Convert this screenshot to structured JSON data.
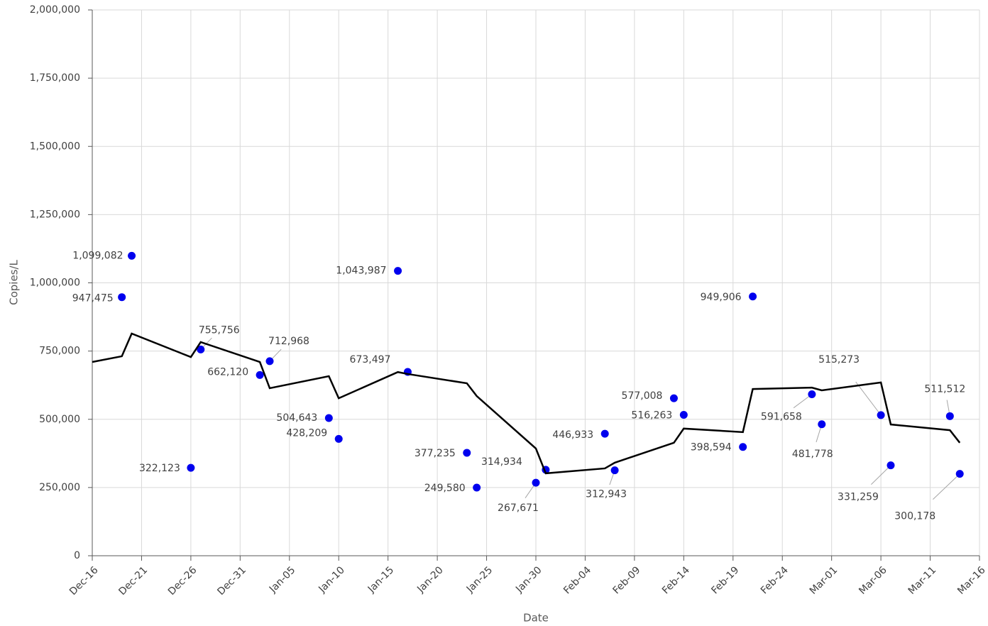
{
  "chart_data": {
    "type": "scatter",
    "x_label": "Date",
    "y_label": "Copies/L",
    "xlim": [
      0,
      90
    ],
    "xticks": [
      {
        "value": 0,
        "label": "Dec-16"
      },
      {
        "value": 5,
        "label": "Dec-21"
      },
      {
        "value": 10,
        "label": "Dec-26"
      },
      {
        "value": 15,
        "label": "Dec-31"
      },
      {
        "value": 20,
        "label": "Jan-05"
      },
      {
        "value": 25,
        "label": "Jan-10"
      },
      {
        "value": 30,
        "label": "Jan-15"
      },
      {
        "value": 35,
        "label": "Jan-20"
      },
      {
        "value": 40,
        "label": "Jan-25"
      },
      {
        "value": 45,
        "label": "Jan-30"
      },
      {
        "value": 50,
        "label": "Feb-04"
      },
      {
        "value": 55,
        "label": "Feb-09"
      },
      {
        "value": 60,
        "label": "Feb-14"
      },
      {
        "value": 65,
        "label": "Feb-19"
      },
      {
        "value": 70,
        "label": "Feb-24"
      },
      {
        "value": 75,
        "label": "Mar-01"
      },
      {
        "value": 80,
        "label": "Mar-06"
      },
      {
        "value": 85,
        "label": "Mar-11"
      },
      {
        "value": 90,
        "label": "Mar-16"
      }
    ],
    "ylim": [
      0,
      2000000
    ],
    "yticks": [
      0,
      {
        "value": 250000,
        "label": "250,000"
      },
      {
        "value": 500000,
        "label": "500,000"
      },
      {
        "value": 750000,
        "label": "750,000"
      },
      {
        "value": 1000000,
        "label": "1,000,000"
      },
      {
        "value": 1250000,
        "label": "1,250,000"
      },
      {
        "value": 1500000,
        "label": "1,500,000"
      },
      {
        "value": 1750000,
        "label": "1,750,000"
      },
      {
        "value": 2000000,
        "label": "2,000,000"
      }
    ],
    "grid": true,
    "series": [
      {
        "color": "#0000ee",
        "x": [
          3,
          4,
          10,
          11,
          17,
          18,
          24,
          25,
          31,
          32,
          38,
          39,
          45,
          46,
          52,
          53,
          59,
          60,
          66,
          67,
          73,
          74,
          80,
          81,
          87,
          88
        ],
        "values": [
          947475,
          1099082,
          322123,
          755756,
          662120,
          712968,
          504643,
          428209,
          1043987,
          673497,
          377235,
          249580,
          267671,
          314934,
          446933,
          312943,
          577008,
          516263,
          398594,
          949906,
          591658,
          481778,
          515273,
          331259,
          511512,
          300178
        ],
        "value_labels": [
          "947,475",
          "1,099,082",
          "322,123",
          "755,756",
          "662,120",
          "712,968",
          "504,643",
          "428,209",
          "1,043,987",
          "673,497",
          "377,235",
          "249,580",
          "267,671",
          "314,934",
          "446,933",
          "312,943",
          "577,008",
          "516,263",
          "398,594",
          "949,906",
          "591,658",
          "481,778",
          "515,273",
          "331,259",
          "511,512",
          "300,178"
        ]
      },
      {
        "type": "line",
        "color": "#000000",
        "x": [
          0,
          3,
          4,
          10,
          11,
          17,
          18,
          24,
          25,
          31,
          32,
          38,
          39,
          45,
          46,
          52,
          53,
          59,
          60,
          66,
          67,
          73,
          74,
          80,
          81,
          87,
          88
        ],
        "values": [
          710000,
          731000,
          814000,
          728000,
          783000,
          710000,
          614000,
          658000,
          577000,
          673000,
          666000,
          632000,
          585000,
          393000,
          302000,
          320000,
          341000,
          414000,
          466000,
          453000,
          611000,
          616000,
          606000,
          635000,
          481000,
          460000,
          414000
        ]
      }
    ]
  }
}
